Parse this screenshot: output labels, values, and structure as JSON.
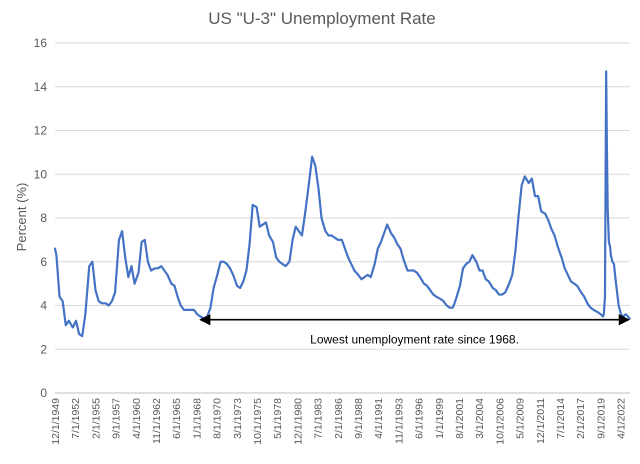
{
  "chart_data": {
    "type": "line",
    "title": "US \"U-3\" Unemployment Rate",
    "xlabel": "",
    "ylabel": "Percent (%)",
    "ylim": [
      0,
      16
    ],
    "y_ticks": [
      "0",
      "2",
      "4",
      "6",
      "8",
      "10",
      "12",
      "14",
      "16"
    ],
    "grid": "horizontal",
    "line_color": "#4472c4",
    "x_tick_labels": [
      "12/1/1949",
      "7/1/1952",
      "2/1/1955",
      "9/1/1957",
      "4/1/1960",
      "11/1/1962",
      "6/1/1965",
      "1/1/1968",
      "8/1/1970",
      "3/1/1973",
      "10/1/1975",
      "5/1/1978",
      "12/1/1980",
      "7/1/1983",
      "2/1/1986",
      "9/1/1988",
      "4/1/1991",
      "11/1/1993",
      "6/1/1996",
      "1/1/1999",
      "8/1/2001",
      "3/1/2004",
      "10/1/2006",
      "5/1/2009",
      "12/1/2011",
      "7/1/2014",
      "2/1/2017",
      "9/1/2019",
      "4/1/2022"
    ],
    "series": [
      {
        "x": [
          1949.92,
          1950.1,
          1950.5,
          1950.9,
          1951.3,
          1951.7,
          1952.2,
          1952.6,
          1953.0,
          1953.4,
          1953.8,
          1954.3,
          1954.7,
          1955.1,
          1955.5,
          1955.9,
          1956.4,
          1956.8,
          1957.2,
          1957.6,
          1958.1,
          1958.5,
          1958.9,
          1959.3,
          1959.7,
          1960.1,
          1960.6,
          1961.0,
          1961.4,
          1961.8,
          1962.2,
          1962.7,
          1963.1,
          1963.5,
          1963.9,
          1964.3,
          1964.8,
          1965.2,
          1965.6,
          1966.0,
          1966.4,
          1966.9,
          1967.3,
          1967.7,
          1968.1,
          1968.5,
          1969.0,
          1969.4,
          1969.8,
          1970.2,
          1970.6,
          1971.1,
          1971.5,
          1971.9,
          1972.3,
          1972.7,
          1973.2,
          1973.6,
          1974.0,
          1974.4,
          1974.8,
          1975.2,
          1975.7,
          1976.1,
          1976.5,
          1976.9,
          1977.3,
          1977.8,
          1978.2,
          1978.6,
          1979.0,
          1979.4,
          1979.9,
          1980.3,
          1980.7,
          1981.1,
          1981.5,
          1981.9,
          1982.4,
          1982.8,
          1983.2,
          1983.6,
          1984.0,
          1984.5,
          1984.9,
          1985.3,
          1985.7,
          1986.1,
          1986.6,
          1987.0,
          1987.4,
          1987.8,
          1988.2,
          1988.7,
          1989.1,
          1989.5,
          1989.9,
          1990.3,
          1990.8,
          1991.2,
          1991.6,
          1992.0,
          1992.4,
          1992.9,
          1993.3,
          1993.7,
          1994.1,
          1994.5,
          1995.0,
          1995.4,
          1995.8,
          1996.2,
          1996.6,
          1997.1,
          1997.5,
          1997.9,
          1998.3,
          1998.7,
          1999.2,
          1999.6,
          2000.0,
          2000.4,
          2000.8,
          2001.2,
          2001.7,
          2002.1,
          2002.5,
          2002.9,
          2003.3,
          2003.8,
          2004.2,
          2004.6,
          2005.0,
          2005.4,
          2005.9,
          2006.3,
          2006.7,
          2007.1,
          2007.5,
          2008.0,
          2008.4,
          2008.8,
          2009.2,
          2009.6,
          2010.0,
          2010.5,
          2010.9,
          2011.3,
          2011.7,
          2012.1,
          2012.6,
          2013.0,
          2013.4,
          2013.8,
          2014.2,
          2014.7,
          2015.1,
          2015.5,
          2015.9,
          2016.3,
          2016.7,
          2017.2,
          2017.6,
          2018.0,
          2018.4,
          2018.8,
          2019.3,
          2019.7,
          2020.0,
          2020.1,
          2020.25,
          2020.4,
          2020.5,
          2020.6,
          2020.75,
          2020.9,
          2021.0,
          2021.2,
          2021.4,
          2021.6,
          2021.8,
          2022.0,
          2022.3,
          2022.6,
          2022.9,
          2023.2,
          2023.4
        ],
        "values": [
          6.6,
          6.3,
          4.4,
          4.2,
          3.1,
          3.3,
          3.0,
          3.3,
          2.7,
          2.6,
          3.6,
          5.8,
          6.0,
          4.7,
          4.2,
          4.1,
          4.1,
          4.0,
          4.2,
          4.6,
          7.0,
          7.4,
          6.2,
          5.3,
          5.8,
          5.0,
          5.5,
          6.9,
          7.0,
          6.0,
          5.6,
          5.7,
          5.7,
          5.8,
          5.6,
          5.4,
          5.0,
          4.9,
          4.4,
          4.0,
          3.8,
          3.8,
          3.8,
          3.8,
          3.6,
          3.5,
          3.4,
          3.5,
          3.9,
          4.8,
          5.3,
          6.0,
          6.0,
          5.9,
          5.7,
          5.4,
          4.9,
          4.8,
          5.1,
          5.6,
          6.8,
          8.6,
          8.5,
          7.6,
          7.7,
          7.8,
          7.2,
          6.9,
          6.2,
          6.0,
          5.9,
          5.8,
          6.0,
          7.0,
          7.6,
          7.4,
          7.2,
          8.2,
          9.6,
          10.8,
          10.4,
          9.4,
          8.0,
          7.4,
          7.2,
          7.2,
          7.1,
          7.0,
          7.0,
          6.6,
          6.2,
          5.9,
          5.6,
          5.4,
          5.2,
          5.3,
          5.4,
          5.3,
          5.9,
          6.6,
          6.9,
          7.3,
          7.7,
          7.3,
          7.1,
          6.8,
          6.6,
          6.1,
          5.6,
          5.6,
          5.6,
          5.5,
          5.3,
          5.0,
          4.9,
          4.7,
          4.5,
          4.4,
          4.3,
          4.2,
          4.0,
          3.9,
          3.9,
          4.3,
          4.9,
          5.7,
          5.9,
          6.0,
          6.3,
          6.0,
          5.6,
          5.6,
          5.2,
          5.1,
          4.8,
          4.7,
          4.5,
          4.5,
          4.6,
          5.0,
          5.4,
          6.5,
          8.1,
          9.5,
          9.9,
          9.6,
          9.8,
          9.0,
          9.0,
          8.3,
          8.2,
          7.9,
          7.5,
          7.2,
          6.7,
          6.2,
          5.7,
          5.4,
          5.1,
          5.0,
          4.9,
          4.6,
          4.4,
          4.1,
          3.9,
          3.8,
          3.7,
          3.6,
          3.5,
          3.6,
          4.4,
          14.7,
          11.1,
          8.4,
          6.9,
          6.7,
          6.3,
          6.0,
          5.9,
          5.2,
          4.6,
          4.0,
          3.6,
          3.5,
          3.6,
          3.5,
          3.4
        ]
      }
    ],
    "annotation": {
      "text": "Lowest unemployment rate since 1968.",
      "from_x": 1968.5,
      "to_x": 2023.3,
      "y": 3.35
    }
  }
}
